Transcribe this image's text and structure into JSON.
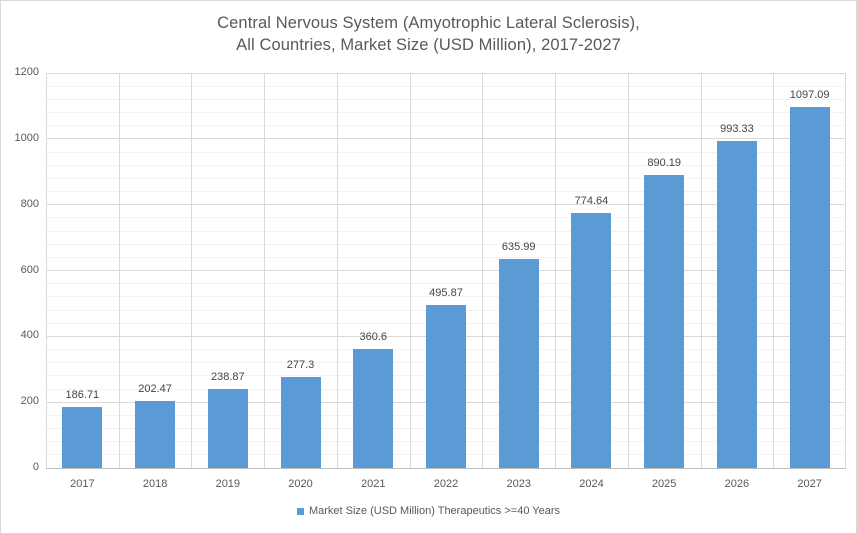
{
  "window": {
    "background": "#ffffff",
    "border_color": "#d9d9d9"
  },
  "chart_data": {
    "type": "bar",
    "title": "Central Nervous System (Amyotrophic Lateral Sclerosis), All Countries, Market Size (USD Million), 2017-2027",
    "title_lines": [
      "Central Nervous System (Amyotrophic Lateral Sclerosis),",
      "All Countries, Market Size (USD Million), 2017-2027"
    ],
    "categories": [
      "2017",
      "2018",
      "2019",
      "2020",
      "2021",
      "2022",
      "2023",
      "2024",
      "2025",
      "2026",
      "2027"
    ],
    "series": [
      {
        "name": "Market Size (USD Million) Therapeutics >=40 Years",
        "values": [
          186.71,
          202.47,
          238.87,
          277.3,
          360.6,
          495.87,
          635.99,
          774.64,
          890.19,
          993.33,
          1097.09
        ],
        "color": "#5B9BD5"
      }
    ],
    "value_labels": [
      "186.71",
      "202.47",
      "238.87",
      "277.3",
      "360.6",
      "495.87",
      "635.99",
      "774.64",
      "890.19",
      "993.33",
      "1097.09"
    ],
    "xlabel": "",
    "ylabel": "",
    "ylim": [
      0,
      1200
    ],
    "y_major_ticks": [
      0,
      200,
      400,
      600,
      800,
      1000,
      1200
    ],
    "y_minor_unit": 40,
    "grid": true,
    "legend_position": "bottom",
    "colors": {
      "title_text": "#595959",
      "tick_text": "#595959",
      "data_label_text": "#444444",
      "major_grid": "#d9d9d9",
      "minor_grid": "#f2f2f2",
      "axis_line": "#bfbfbf",
      "bar_fill": "#5B9BD5"
    }
  }
}
